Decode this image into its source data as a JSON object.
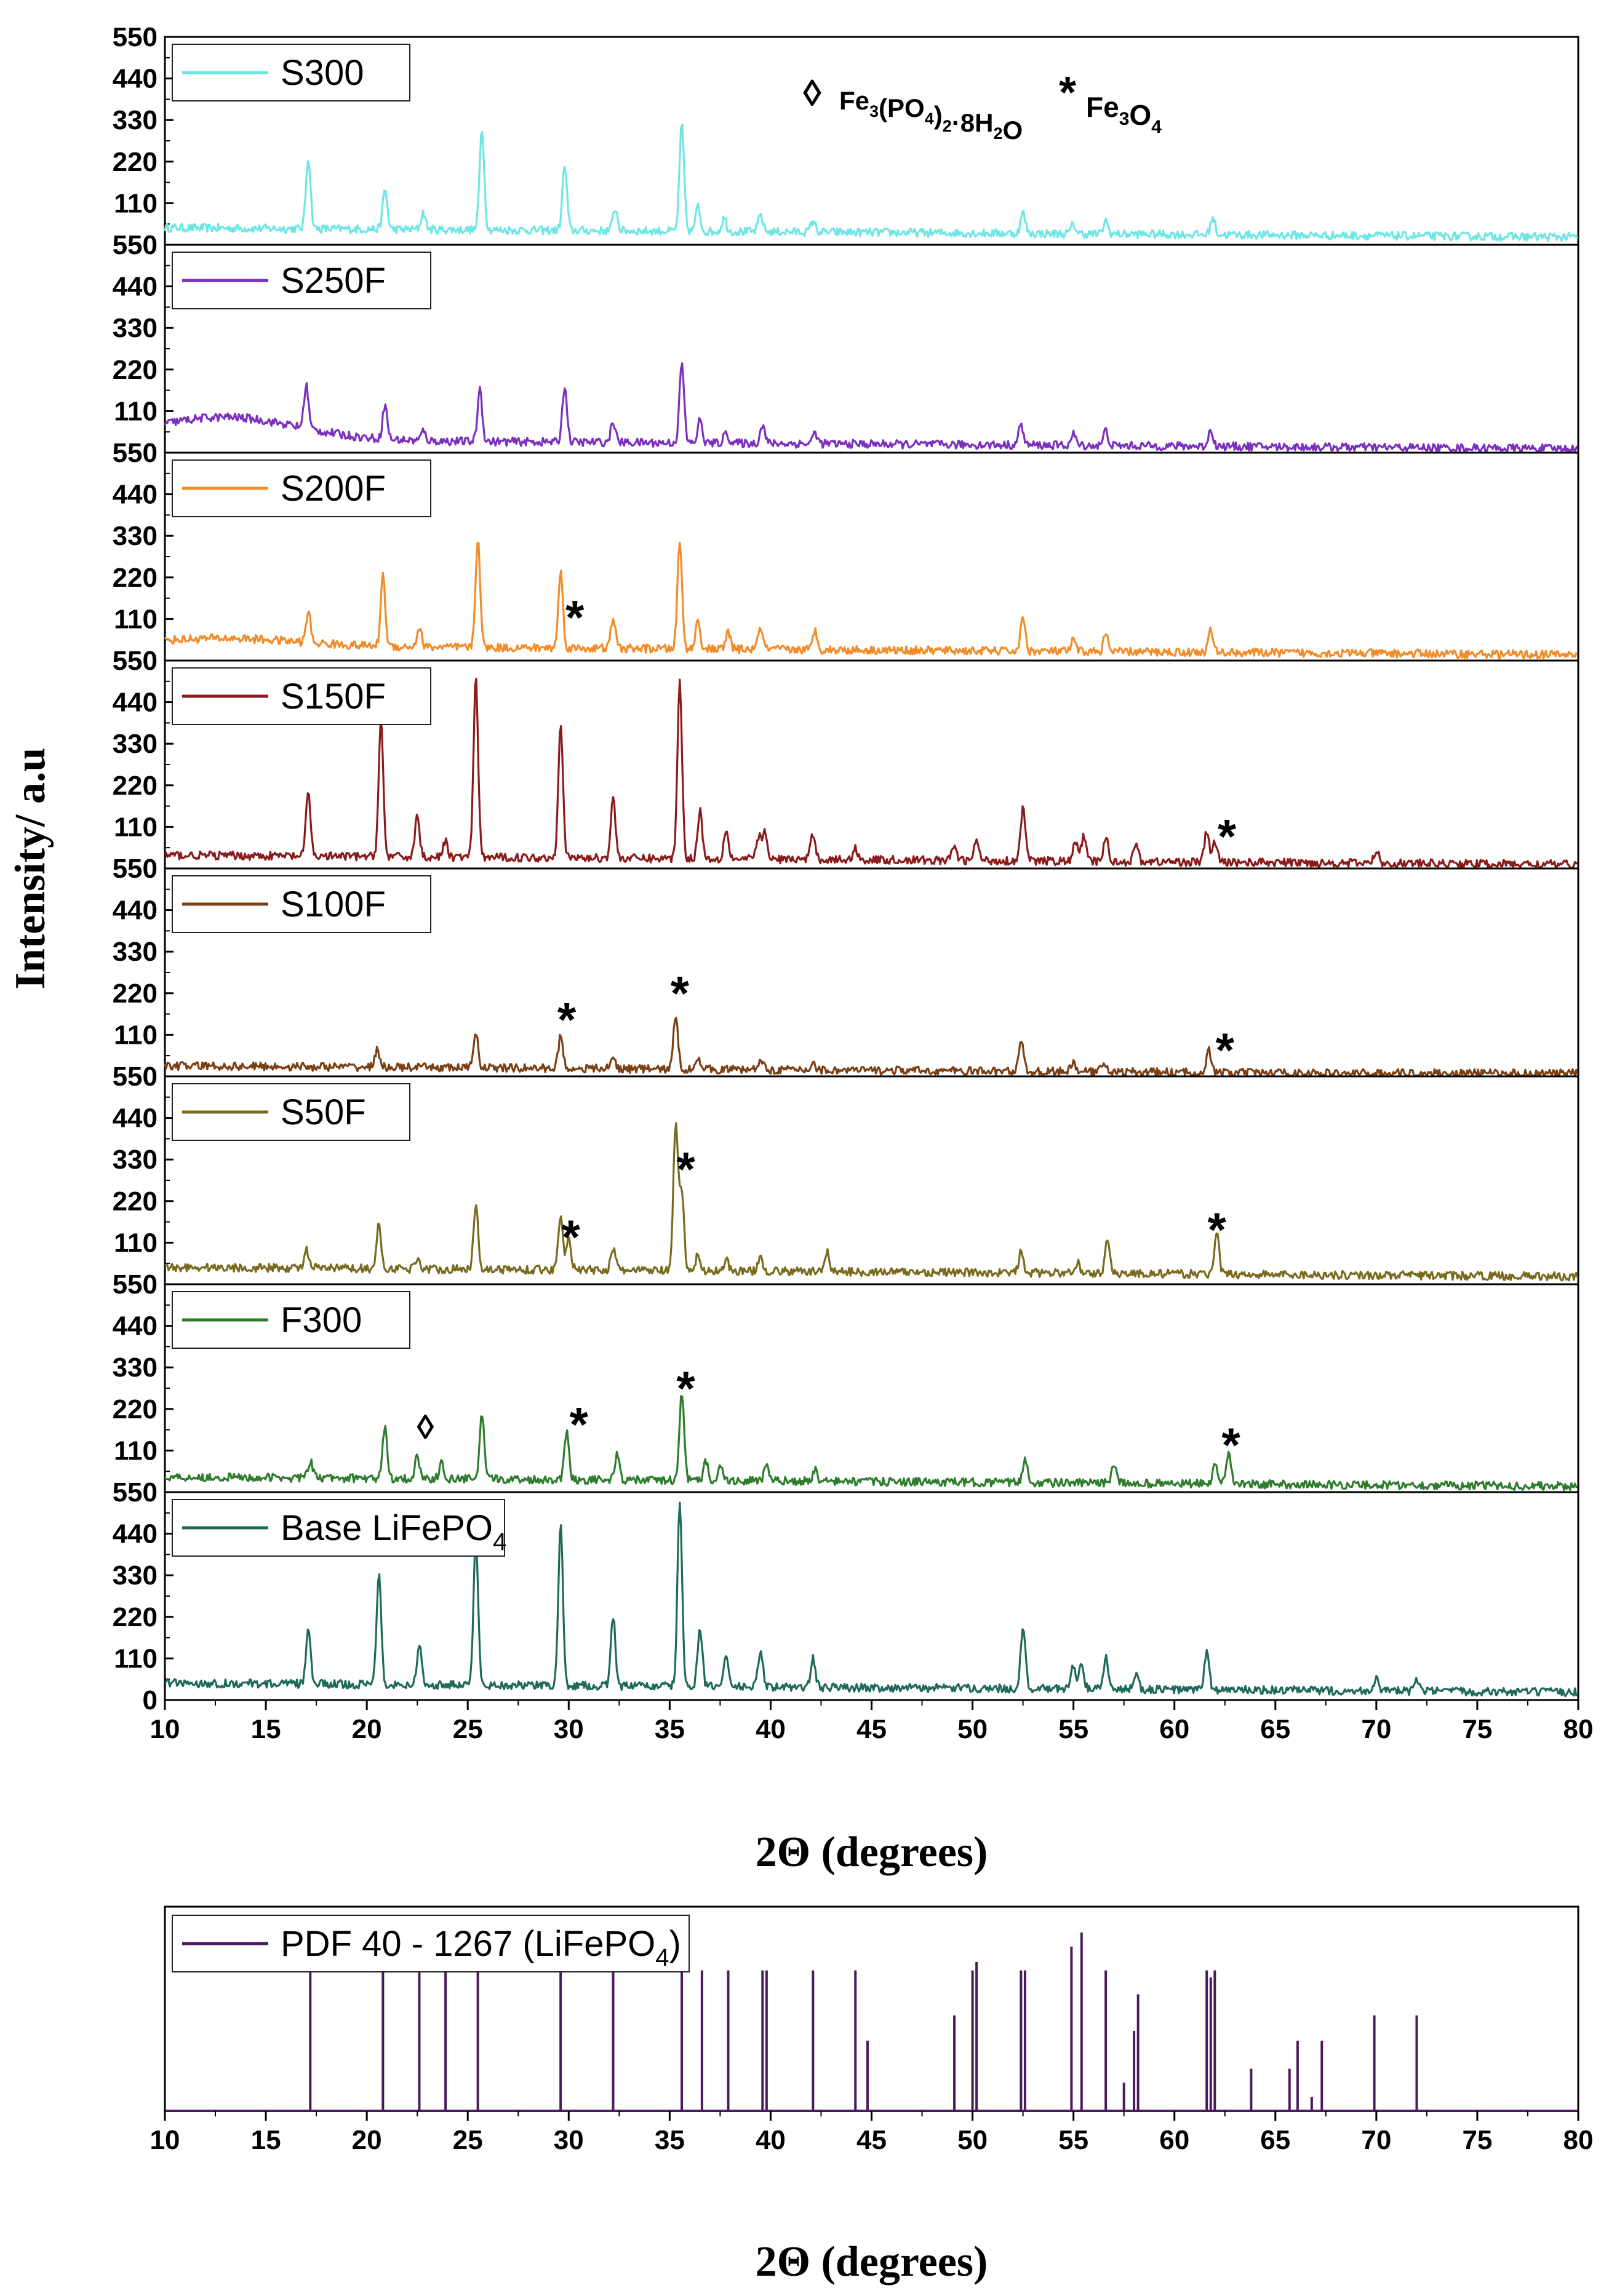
{
  "chart_data": [
    {
      "type": "line",
      "title": "",
      "xlabel": "2Θ (degrees)",
      "ylabel": "Intensity/ a.u",
      "xlim": [
        10,
        80
      ],
      "xticks": [
        "10",
        "15",
        "20",
        "25",
        "30",
        "35",
        "40",
        "45",
        "50",
        "55",
        "60",
        "65",
        "70",
        "75",
        "80"
      ],
      "ylim": [
        0,
        550
      ],
      "yticks": [
        "0",
        "110",
        "220",
        "330",
        "440",
        "550"
      ],
      "annotation_legend": {
        "diamond_symbol": "◊",
        "diamond_formula": "Fe",
        "diamond_parts": [
          {
            "t": "Fe",
            "s": "n"
          },
          {
            "t": "3",
            "s": "sub"
          },
          {
            "t": "(PO",
            "s": "n"
          },
          {
            "t": "4",
            "s": "sub"
          },
          {
            "t": ")",
            "s": "n"
          },
          {
            "t": "2",
            "s": "sub"
          },
          {
            "t": "·8H",
            "s": "n"
          },
          {
            "t": "2",
            "s": "sub"
          },
          {
            "t": "O",
            "s": "n"
          }
        ],
        "star_symbol": "*",
        "star_parts": [
          {
            "t": "Fe",
            "s": "n"
          },
          {
            "t": "3",
            "s": "sub"
          },
          {
            "t": "O",
            "s": "n"
          },
          {
            "t": "4",
            "s": "sub"
          }
        ]
      },
      "series": [
        {
          "name": "S300",
          "color": "#6FE6E6",
          "baseline": 45,
          "scale": 0.58,
          "bump": 0,
          "peaks": [
            [
              17.1,
              190
            ],
            [
              20.9,
              105
            ],
            [
              22.8,
              45
            ],
            [
              25.7,
              270
            ],
            [
              29.8,
              170
            ],
            [
              32.3,
              60
            ],
            [
              35.6,
              280
            ],
            [
              36.4,
              65
            ],
            [
              37.7,
              35
            ],
            [
              39.5,
              45
            ],
            [
              42.1,
              30
            ],
            [
              52.5,
              55
            ],
            [
              55.0,
              25
            ],
            [
              56.6,
              35
            ],
            [
              61.9,
              45
            ]
          ],
          "markers": []
        },
        {
          "name": "S250F",
          "color": "#7B2FBE",
          "baseline": 35,
          "scale": 0.6,
          "bump": 60,
          "peaks": [
            [
              17.0,
              115
            ],
            [
              20.9,
              90
            ],
            [
              22.8,
              25
            ],
            [
              25.6,
              140
            ],
            [
              29.8,
              150
            ],
            [
              32.2,
              55
            ],
            [
              35.6,
              210
            ],
            [
              36.5,
              60
            ],
            [
              37.8,
              30
            ],
            [
              39.6,
              50
            ],
            [
              42.2,
              30
            ],
            [
              52.4,
              55
            ],
            [
              55.0,
              30
            ],
            [
              56.6,
              40
            ],
            [
              61.8,
              45
            ]
          ],
          "markers": []
        },
        {
          "name": "S200F",
          "color": "#F28C28",
          "baseline": 40,
          "scale": 0.65,
          "bump": 20,
          "peaks": [
            [
              17.1,
              80
            ],
            [
              20.8,
              185
            ],
            [
              22.6,
              50
            ],
            [
              25.5,
              290
            ],
            [
              29.6,
              200
            ],
            [
              32.2,
              80
            ],
            [
              35.5,
              280
            ],
            [
              36.4,
              75
            ],
            [
              37.9,
              45
            ],
            [
              39.5,
              60
            ],
            [
              42.2,
              50
            ],
            [
              52.5,
              90
            ],
            [
              55.0,
              30
            ],
            [
              56.6,
              45
            ],
            [
              61.8,
              60
            ]
          ],
          "markers": [
            {
              "x": 30.3,
              "y": 120,
              "sym": "*"
            }
          ]
        },
        {
          "name": "S150F",
          "color": "#8B1A1A",
          "baseline": 35,
          "scale": 0.75,
          "bump": 0,
          "peaks": [
            [
              17.1,
              170
            ],
            [
              20.7,
              360
            ],
            [
              22.5,
              110
            ],
            [
              23.9,
              40
            ],
            [
              25.4,
              470
            ],
            [
              29.6,
              360
            ],
            [
              32.2,
              160
            ],
            [
              35.5,
              470
            ],
            [
              36.5,
              130
            ],
            [
              37.8,
              80
            ],
            [
              39.4,
              60
            ],
            [
              39.7,
              70
            ],
            [
              42.1,
              70
            ],
            [
              44.2,
              30
            ],
            [
              49.1,
              40
            ],
            [
              50.2,
              55
            ],
            [
              52.5,
              145
            ],
            [
              55.1,
              50
            ],
            [
              55.5,
              65
            ],
            [
              56.6,
              65
            ],
            [
              58.1,
              45
            ],
            [
              61.6,
              80
            ],
            [
              62.0,
              55
            ],
            [
              70.0,
              35
            ]
          ],
          "markers": [
            {
              "x": 62.6,
              "y": 90,
              "sym": "*"
            }
          ]
        },
        {
          "name": "S100F",
          "color": "#7B3F14",
          "baseline": 28,
          "scale": 0.7,
          "bump": 0,
          "peaks": [
            [
              20.5,
              45
            ],
            [
              25.4,
              95
            ],
            [
              29.6,
              85
            ],
            [
              32.2,
              30
            ],
            [
              35.3,
              140
            ],
            [
              36.4,
              35
            ],
            [
              39.5,
              30
            ],
            [
              42.1,
              20
            ],
            [
              52.4,
              85
            ],
            [
              55.0,
              25
            ],
            [
              56.5,
              30
            ],
            [
              61.7,
              60
            ]
          ],
          "markers": [
            {
              "x": 29.9,
              "y": 155,
              "sym": "*"
            },
            {
              "x": 35.5,
              "y": 225,
              "sym": "*"
            },
            {
              "x": 62.5,
              "y": 75,
              "sym": "*"
            }
          ]
        },
        {
          "name": "S50F",
          "color": "#7A6A1E",
          "baseline": 45,
          "scale": 0.7,
          "bump": 0,
          "peaks": [
            [
              17.0,
              50
            ],
            [
              20.6,
              115
            ],
            [
              22.5,
              30
            ],
            [
              25.4,
              175
            ],
            [
              29.6,
              145
            ],
            [
              30.0,
              90
            ],
            [
              32.2,
              60
            ],
            [
              35.3,
              390
            ],
            [
              35.6,
              200
            ],
            [
              36.4,
              40
            ],
            [
              37.8,
              30
            ],
            [
              39.5,
              40
            ],
            [
              42.8,
              55
            ],
            [
              52.4,
              55
            ],
            [
              55.2,
              30
            ],
            [
              56.7,
              95
            ],
            [
              62.1,
              105
            ]
          ],
          "markers": [
            {
              "x": 30.1,
              "y": 130,
              "sym": "*"
            },
            {
              "x": 35.8,
              "y": 310,
              "sym": "*"
            },
            {
              "x": 62.1,
              "y": 150,
              "sym": "*"
            }
          ]
        },
        {
          "name": "F300",
          "color": "#2E7D2E",
          "baseline": 40,
          "scale": 0.6,
          "bump": 0,
          "peaks": [
            [
              17.2,
              45
            ],
            [
              20.9,
              135
            ],
            [
              22.5,
              60
            ],
            [
              23.7,
              40
            ],
            [
              25.7,
              170
            ],
            [
              29.9,
              130
            ],
            [
              32.4,
              65
            ],
            [
              35.6,
              235
            ],
            [
              36.8,
              50
            ],
            [
              37.5,
              40
            ],
            [
              39.8,
              40
            ],
            [
              42.2,
              30
            ],
            [
              52.6,
              65
            ],
            [
              57.0,
              55
            ],
            [
              62.0,
              50
            ],
            [
              62.7,
              80
            ]
          ],
          "markers": [
            {
              "x": 22.9,
              "y": 170,
              "sym": "◊"
            },
            {
              "x": 30.5,
              "y": 185,
              "sym": "*"
            },
            {
              "x": 35.8,
              "y": 280,
              "sym": "*"
            },
            {
              "x": 62.8,
              "y": 130,
              "sym": "*"
            }
          ]
        },
        {
          "name": "Base LiFePO",
          "sub": "4",
          "color": "#1E6A5A",
          "baseline": 45,
          "scale": 0.75,
          "bump": 0,
          "peaks": [
            [
              17.1,
              140
            ],
            [
              20.6,
              300
            ],
            [
              22.6,
              105
            ],
            [
              25.4,
              390
            ],
            [
              29.6,
              420
            ],
            [
              32.2,
              185
            ],
            [
              35.5,
              480
            ],
            [
              36.5,
              160
            ],
            [
              37.8,
              85
            ],
            [
              39.5,
              100
            ],
            [
              42.1,
              75
            ],
            [
              52.5,
              170
            ],
            [
              55.0,
              65
            ],
            [
              55.4,
              70
            ],
            [
              56.6,
              85
            ],
            [
              58.1,
              45
            ],
            [
              61.6,
              105
            ],
            [
              70.0,
              40
            ],
            [
              72.0,
              30
            ]
          ],
          "markers": []
        }
      ]
    },
    {
      "type": "bar",
      "title": "",
      "xlabel": "2Θ (degrees)",
      "xlim": [
        10,
        80
      ],
      "xticks": [
        "10",
        "15",
        "20",
        "25",
        "30",
        "35",
        "40",
        "45",
        "50",
        "55",
        "60",
        "65",
        "70",
        "75",
        "80"
      ],
      "legend": {
        "label": "PDF 40 - 1267 (LiFePO",
        "sub": "4",
        "suffix": ")",
        "color": "#4B1A5E"
      },
      "sticks": [
        [
          17.2,
          100
        ],
        [
          20.8,
          100
        ],
        [
          22.6,
          100
        ],
        [
          23.9,
          100
        ],
        [
          25.5,
          100
        ],
        [
          29.6,
          100
        ],
        [
          32.2,
          100
        ],
        [
          35.6,
          100
        ],
        [
          36.6,
          100
        ],
        [
          37.9,
          100
        ],
        [
          39.6,
          100
        ],
        [
          39.8,
          100
        ],
        [
          42.1,
          100
        ],
        [
          44.2,
          100
        ],
        [
          44.8,
          50
        ],
        [
          49.1,
          68
        ],
        [
          50.0,
          100
        ],
        [
          50.2,
          106
        ],
        [
          52.4,
          100
        ],
        [
          52.6,
          100
        ],
        [
          54.9,
          117
        ],
        [
          55.4,
          127
        ],
        [
          56.6,
          100
        ],
        [
          57.5,
          20
        ],
        [
          58.0,
          57
        ],
        [
          58.2,
          83
        ],
        [
          61.6,
          100
        ],
        [
          61.8,
          95
        ],
        [
          62.0,
          100
        ],
        [
          63.8,
          30
        ],
        [
          65.7,
          30
        ],
        [
          66.1,
          50
        ],
        [
          66.8,
          10
        ],
        [
          67.3,
          50
        ],
        [
          69.9,
          68
        ],
        [
          72.0,
          68
        ]
      ]
    }
  ]
}
